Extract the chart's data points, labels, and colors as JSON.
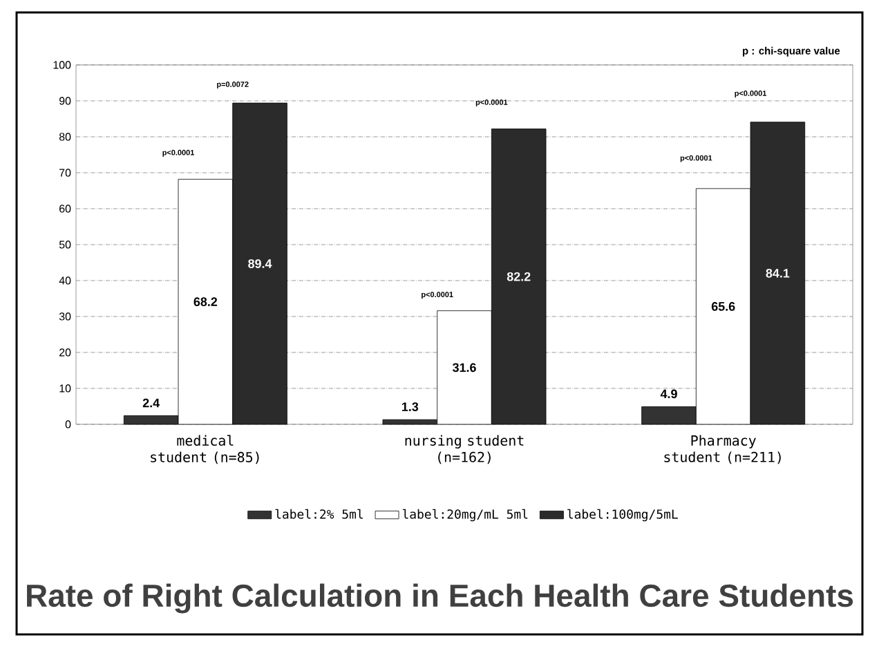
{
  "chart_data": {
    "type": "bar",
    "title": "Rate of Right Calculation in Each Health Care Students",
    "categories": [
      "medical student (n=85)",
      "nursing student (n=162)",
      "Pharmacy student (n=211)"
    ],
    "series": [
      {
        "name": "label:2% 5ml",
        "color": "#333333",
        "values": [
          2.4,
          1.3,
          4.9
        ]
      },
      {
        "name": "label:20mg/mL 5ml",
        "color": "#ffffff",
        "values": [
          68.2,
          31.6,
          65.6
        ]
      },
      {
        "name": "label:100mg/5mL",
        "color": "#2b2b2b",
        "values": [
          89.4,
          82.2,
          84.1
        ]
      }
    ],
    "ylim": [
      0,
      100
    ],
    "yticks": [
      0,
      10,
      20,
      30,
      40,
      50,
      60,
      70,
      80,
      90,
      100
    ],
    "grid": "y",
    "legend": "bottom",
    "data_labels": true,
    "annotations": [
      "p : chi-square value",
      "p<0.0001",
      "p=0.0072",
      "p<0.0001",
      "p<0.0001",
      "p<0.0001",
      "p<0.0001"
    ]
  }
}
